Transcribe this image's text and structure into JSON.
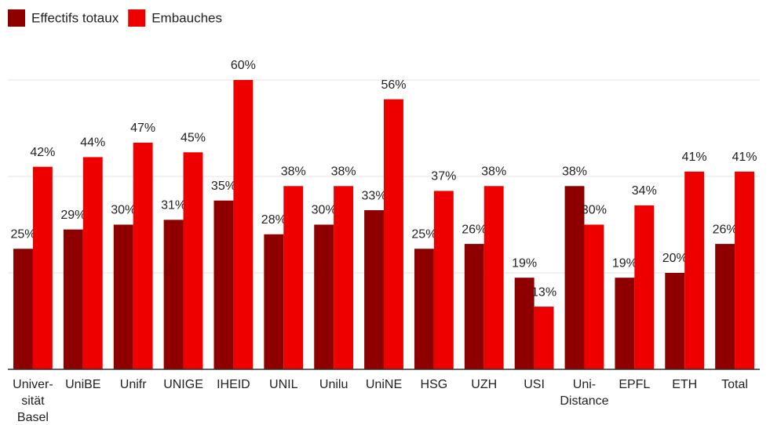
{
  "chart_data": {
    "type": "bar",
    "categories": [
      [
        "Univer-",
        "sität",
        "Basel"
      ],
      [
        "UniBE"
      ],
      [
        "Unifr"
      ],
      [
        "UNIGE"
      ],
      [
        "IHEID"
      ],
      [
        "UNIL"
      ],
      [
        "Unilu"
      ],
      [
        "UniNE"
      ],
      [
        "HSG"
      ],
      [
        "UZH"
      ],
      [
        "USI"
      ],
      [
        "Uni-",
        "Distance"
      ],
      [
        "EPFL"
      ],
      [
        "ETH"
      ],
      [
        "Total"
      ]
    ],
    "series": [
      {
        "name": "Effectifs totaux",
        "color": "#8e0000",
        "values": [
          25,
          29,
          30,
          31,
          35,
          28,
          30,
          33,
          25,
          26,
          19,
          38,
          19,
          20,
          26
        ],
        "value_labels": [
          "25%",
          "29%",
          "30%",
          "31%",
          "35%",
          "28%",
          "30%",
          "33%",
          "25%",
          "26%",
          "19%",
          "38%",
          "19%",
          "20%",
          "26%"
        ]
      },
      {
        "name": "Embauches",
        "color": "#ee0000",
        "values": [
          42,
          44,
          47,
          45,
          60,
          38,
          38,
          56,
          37,
          38,
          13,
          30,
          34,
          41,
          41
        ],
        "value_labels": [
          "42%",
          "44%",
          "47%",
          "45%",
          "60%",
          "38%",
          "38%",
          "56%",
          "37%",
          "38%",
          "13%",
          "30%",
          "34%",
          "41%",
          "41%"
        ]
      }
    ],
    "ylim": [
      0,
      60
    ],
    "yticks": [
      0,
      20,
      40,
      60
    ],
    "grid": true,
    "legend": "top-left"
  }
}
